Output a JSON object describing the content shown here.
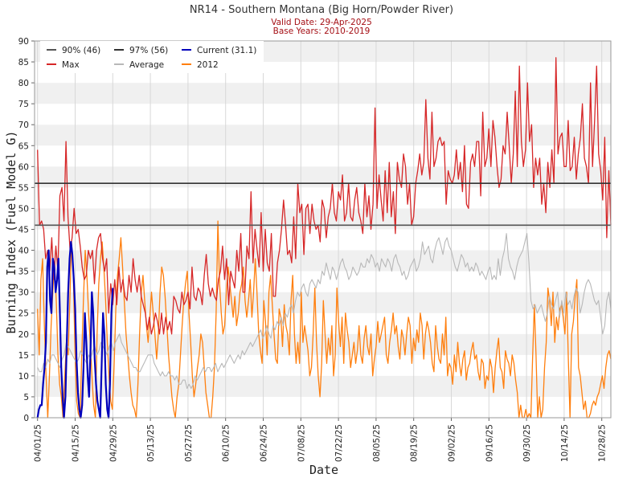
{
  "chart_data": {
    "type": "line",
    "title": "NR14 - Southern Montana (Big Horn/Powder River)",
    "subtitle_lines": [
      "Valid Date: 29-Apr-2025",
      "Base Years: 2010-2019"
    ],
    "xlabel": "Date",
    "ylabel": "Burning Index (Fuel Model G)",
    "ylim": [
      0,
      90
    ],
    "yticks": [
      0,
      5,
      10,
      15,
      20,
      25,
      30,
      35,
      40,
      45,
      50,
      55,
      60,
      65,
      70,
      75,
      80,
      85,
      90
    ],
    "x_start": "2025-04-01",
    "xticks": [
      "04/01/25",
      "04/15/25",
      "04/29/25",
      "05/13/25",
      "05/27/25",
      "06/10/25",
      "06/24/25",
      "07/08/25",
      "07/22/25",
      "08/05/25",
      "08/19/25",
      "09/02/25",
      "09/16/25",
      "09/30/25",
      "10/14/25",
      "10/28/25"
    ],
    "grid": "horizontal bands",
    "legend_position": "top-left",
    "thresholds": [
      {
        "name": "90% (46)",
        "value": 46,
        "color": "#555555"
      },
      {
        "name": "97% (56)",
        "value": 56,
        "color": "#333333"
      }
    ],
    "legend": [
      {
        "label": "90% (46)",
        "color": "#555555"
      },
      {
        "label": "97% (56)",
        "color": "#333333"
      },
      {
        "label": "Current (31.1)",
        "color": "#0000bb"
      },
      {
        "label": "Max",
        "color": "#d62728"
      },
      {
        "label": "Average",
        "color": "#b8b8b8"
      },
      {
        "label": "2012",
        "color": "#ff7f0e"
      }
    ],
    "series": [
      {
        "name": "Max",
        "color": "#d62728",
        "width": 1.3,
        "values": [
          64,
          46,
          47,
          45,
          38,
          40,
          35,
          43,
          33,
          41,
          35,
          53,
          55,
          47,
          66,
          48,
          40,
          43,
          50,
          44,
          45,
          41,
          36,
          33,
          34,
          40,
          38,
          40,
          32,
          40,
          43,
          44,
          38,
          35,
          38,
          25,
          32,
          27,
          33,
          27,
          36,
          30,
          33,
          29,
          28,
          34,
          30,
          38,
          33,
          30,
          34,
          29,
          27,
          25,
          21,
          24,
          20,
          22,
          25,
          23,
          20,
          25,
          20,
          24,
          21,
          23,
          20,
          29,
          28,
          26,
          25,
          30,
          27,
          28,
          30,
          26,
          36,
          29,
          28,
          31,
          30,
          27,
          34,
          39,
          32,
          29,
          31,
          29,
          28,
          33,
          35,
          41,
          33,
          38,
          27,
          35,
          33,
          31,
          40,
          35,
          44,
          30,
          30,
          41,
          38,
          54,
          37,
          45,
          40,
          36,
          49,
          35,
          45,
          37,
          35,
          44,
          29,
          29,
          37,
          40,
          45,
          52,
          46,
          39,
          40,
          37,
          48,
          38,
          56,
          49,
          51,
          39,
          50,
          51,
          44,
          51,
          47,
          45,
          46,
          42,
          52,
          50,
          43,
          48,
          50,
          56,
          49,
          47,
          54,
          52,
          58,
          47,
          49,
          56,
          48,
          47,
          52,
          55,
          49,
          47,
          44,
          56,
          48,
          53,
          45,
          51,
          74,
          50,
          58,
          52,
          47,
          59,
          49,
          61,
          48,
          54,
          44,
          61,
          57,
          55,
          63,
          60,
          51,
          56,
          46,
          48,
          56,
          59,
          63,
          58,
          61,
          76,
          62,
          57,
          73,
          60,
          62,
          66,
          67,
          65,
          66,
          51,
          59,
          57,
          56,
          58,
          64,
          57,
          61,
          54,
          65,
          51,
          50,
          61,
          63,
          60,
          66,
          66,
          53,
          73,
          60,
          62,
          69,
          60,
          71,
          67,
          60,
          55,
          57,
          65,
          63,
          73,
          65,
          56,
          63,
          78,
          60,
          84,
          66,
          60,
          64,
          80,
          66,
          70,
          55,
          62,
          58,
          62,
          51,
          56,
          49,
          61,
          55,
          64,
          56,
          86,
          63,
          67,
          68,
          60,
          60,
          71,
          59,
          60,
          67,
          57,
          63,
          67,
          75,
          62,
          60,
          56,
          80,
          60,
          71,
          84,
          63,
          59,
          52,
          67,
          43,
          59,
          46
        ]
      },
      {
        "name": "Average",
        "color": "#b8b8b8",
        "width": 1.1,
        "values": [
          12,
          11,
          11,
          13,
          12,
          14,
          13,
          15,
          15,
          14,
          13,
          12,
          14,
          15,
          18,
          17,
          16,
          15,
          14,
          13,
          14,
          16,
          15,
          14,
          13,
          15,
          14,
          16,
          17,
          15,
          16,
          18,
          17,
          16,
          15,
          17,
          18,
          16,
          18,
          19,
          20,
          18,
          17,
          16,
          15,
          14,
          13,
          12,
          12,
          11,
          11,
          12,
          13,
          14,
          15,
          15,
          15,
          13,
          12,
          11,
          10,
          11,
          10,
          10,
          11,
          10,
          10,
          9,
          10,
          8,
          8,
          9,
          9,
          7,
          8,
          7,
          8,
          10,
          9,
          10,
          11,
          12,
          11,
          12,
          12,
          11,
          12,
          13,
          11,
          12,
          13,
          12,
          13,
          14,
          15,
          14,
          13,
          14,
          15,
          14,
          16,
          15,
          16,
          17,
          18,
          17,
          18,
          19,
          20,
          21,
          19,
          20,
          22,
          20,
          19,
          22,
          21,
          23,
          22,
          24,
          22,
          25,
          24,
          26,
          27,
          25,
          28,
          30,
          29,
          31,
          32,
          30,
          29,
          32,
          33,
          32,
          31,
          33,
          32,
          35,
          34,
          37,
          35,
          33,
          36,
          35,
          33,
          35,
          37,
          38,
          36,
          35,
          33,
          34,
          36,
          35,
          34,
          35,
          37,
          36,
          36,
          38,
          37,
          39,
          38,
          36,
          37,
          35,
          38,
          37,
          36,
          38,
          37,
          35,
          38,
          39,
          37,
          36,
          34,
          35,
          33,
          34,
          36,
          37,
          38,
          35,
          36,
          38,
          42,
          39,
          40,
          41,
          38,
          37,
          40,
          42,
          43,
          41,
          39,
          42,
          43,
          41,
          40,
          38,
          36,
          35,
          37,
          39,
          38,
          36,
          37,
          35,
          36,
          35,
          37,
          36,
          34,
          35,
          34,
          33,
          35,
          36,
          33,
          34,
          33,
          38,
          34,
          38,
          40,
          44,
          38,
          36,
          35,
          33,
          36,
          38,
          39,
          40,
          42,
          44,
          37,
          28,
          26,
          27,
          25,
          26,
          27,
          25,
          23,
          25,
          29,
          27,
          26,
          28,
          30,
          24,
          28,
          25,
          30,
          27,
          28,
          26,
          29,
          31,
          30,
          25,
          27,
          30,
          32,
          33,
          32,
          30,
          28,
          27,
          28,
          24,
          20,
          22,
          28,
          30,
          26
        ]
      },
      {
        "name": "2012",
        "color": "#ff7f0e",
        "width": 1.3,
        "values": [
          26,
          15,
          33,
          38,
          22,
          10,
          0,
          10,
          22,
          30,
          37,
          28,
          15,
          8,
          5,
          0,
          10,
          18,
          15,
          28,
          42,
          35,
          16,
          4,
          1,
          0,
          15,
          28,
          40,
          34,
          25,
          18,
          10,
          3,
          0,
          20,
          32,
          38,
          42,
          36,
          28,
          18,
          10,
          4,
          2,
          12,
          26,
          34,
          38,
          43,
          36,
          28,
          20,
          15,
          10,
          6,
          3,
          2,
          0,
          8,
          20,
          30,
          34,
          28,
          22,
          18,
          24,
          30,
          25,
          20,
          14,
          20,
          30,
          36,
          34,
          29,
          22,
          15,
          10,
          5,
          2,
          0,
          5,
          8,
          15,
          22,
          28,
          32,
          35,
          25,
          18,
          10,
          5,
          8,
          12,
          15,
          20,
          18,
          12,
          6,
          3,
          0,
          0,
          5,
          12,
          25,
          47,
          32,
          25,
          20,
          22,
          30,
          36,
          32,
          28,
          24,
          29,
          22,
          25,
          30,
          32,
          36,
          28,
          24,
          28,
          33,
          24,
          30,
          38,
          30,
          20,
          16,
          13,
          28,
          23,
          15,
          30,
          34,
          27,
          20,
          14,
          13,
          26,
          24,
          17,
          27,
          22,
          20,
          15,
          28,
          34,
          20,
          13,
          18,
          13,
          30,
          18,
          22,
          19,
          16,
          10,
          12,
          20,
          31,
          18,
          10,
          5,
          13,
          28,
          20,
          13,
          19,
          15,
          22,
          10,
          15,
          31,
          23,
          17,
          24,
          13,
          25,
          21,
          18,
          12,
          15,
          18,
          13,
          16,
          22,
          15,
          13,
          19,
          22,
          17,
          15,
          20,
          10,
          14,
          17,
          23,
          18,
          20,
          22,
          24,
          15,
          13,
          18,
          21,
          25,
          20,
          22,
          17,
          14,
          21,
          19,
          15,
          20,
          24,
          22,
          13,
          19,
          16,
          21,
          18,
          25,
          22,
          14,
          20,
          23,
          21,
          18,
          13,
          11,
          22,
          17,
          14,
          13,
          20,
          15,
          24,
          10,
          13,
          12,
          8,
          15,
          11,
          18,
          13,
          10,
          14,
          16,
          9,
          12,
          13,
          16,
          18,
          14,
          15,
          11,
          9,
          14,
          13,
          7,
          10,
          9,
          14,
          12,
          6,
          12,
          16,
          19,
          12,
          11,
          7,
          16,
          14,
          13,
          10,
          15,
          13,
          9,
          6,
          0,
          3,
          0,
          0,
          2,
          0,
          1,
          0,
          14,
          27,
          15,
          0,
          5,
          0,
          2,
          12,
          18,
          31,
          28,
          22,
          30,
          18,
          24,
          21,
          26,
          27,
          24,
          20,
          30,
          14,
          0,
          20,
          23,
          29,
          33,
          12,
          10,
          6,
          2,
          4,
          0,
          0,
          1,
          3,
          4,
          3,
          5,
          6,
          8,
          10,
          7,
          12,
          15,
          16,
          14
        ]
      },
      {
        "name": "Current (31.1)",
        "color": "#0000bb",
        "width": 2.2,
        "values": [
          0,
          2,
          3,
          3,
          8,
          12,
          18,
          36,
          40,
          28,
          25,
          38,
          36,
          30,
          33,
          38,
          26,
          12,
          5,
          0,
          5,
          18,
          30,
          38,
          42,
          39,
          33,
          26,
          14,
          6,
          2,
          0,
          3,
          12,
          25,
          18,
          10,
          5,
          16,
          30,
          25,
          14,
          8,
          4,
          2,
          0,
          12,
          25,
          20,
          8,
          2,
          0,
          8,
          25,
          31
        ]
      }
    ]
  }
}
